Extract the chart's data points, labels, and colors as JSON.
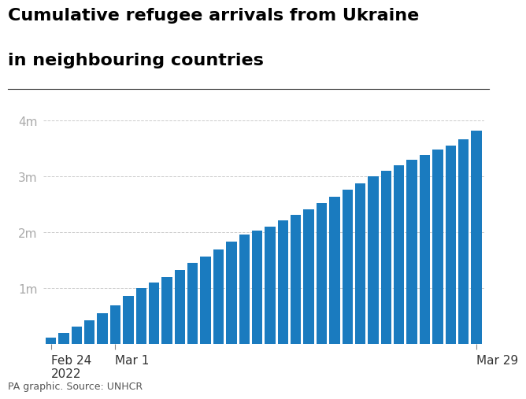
{
  "title_line1": "Cumulative refugee arrivals from Ukraine",
  "title_line2": "in neighbouring countries",
  "bar_color": "#1a7bbf",
  "background_color": "#ffffff",
  "source_text": "PA graphic. Source: UNHCR",
  "ytick_labels": [
    "1m",
    "2m",
    "3m",
    "4m"
  ],
  "ytick_values": [
    1000000,
    2000000,
    3000000,
    4000000
  ],
  "ylim": [
    0,
    4350000
  ],
  "values": [
    120000,
    200000,
    310000,
    430000,
    560000,
    700000,
    870000,
    1010000,
    1100000,
    1200000,
    1330000,
    1450000,
    1570000,
    1700000,
    1840000,
    1960000,
    2030000,
    2100000,
    2210000,
    2310000,
    2420000,
    2530000,
    2640000,
    2760000,
    2880000,
    3000000,
    3100000,
    3200000,
    3300000,
    3390000,
    3480000,
    3560000,
    3660000,
    3820000
  ],
  "xtick_indices": [
    0,
    5,
    33
  ],
  "xtick_labels": [
    "Feb 24\n2022",
    "Mar 1",
    "Mar 29"
  ],
  "title_fontsize": 16,
  "tick_fontsize": 11,
  "source_fontsize": 9,
  "separator_color": "#333333",
  "ytick_color": "#aaaaaa",
  "xtick_color": "#333333"
}
